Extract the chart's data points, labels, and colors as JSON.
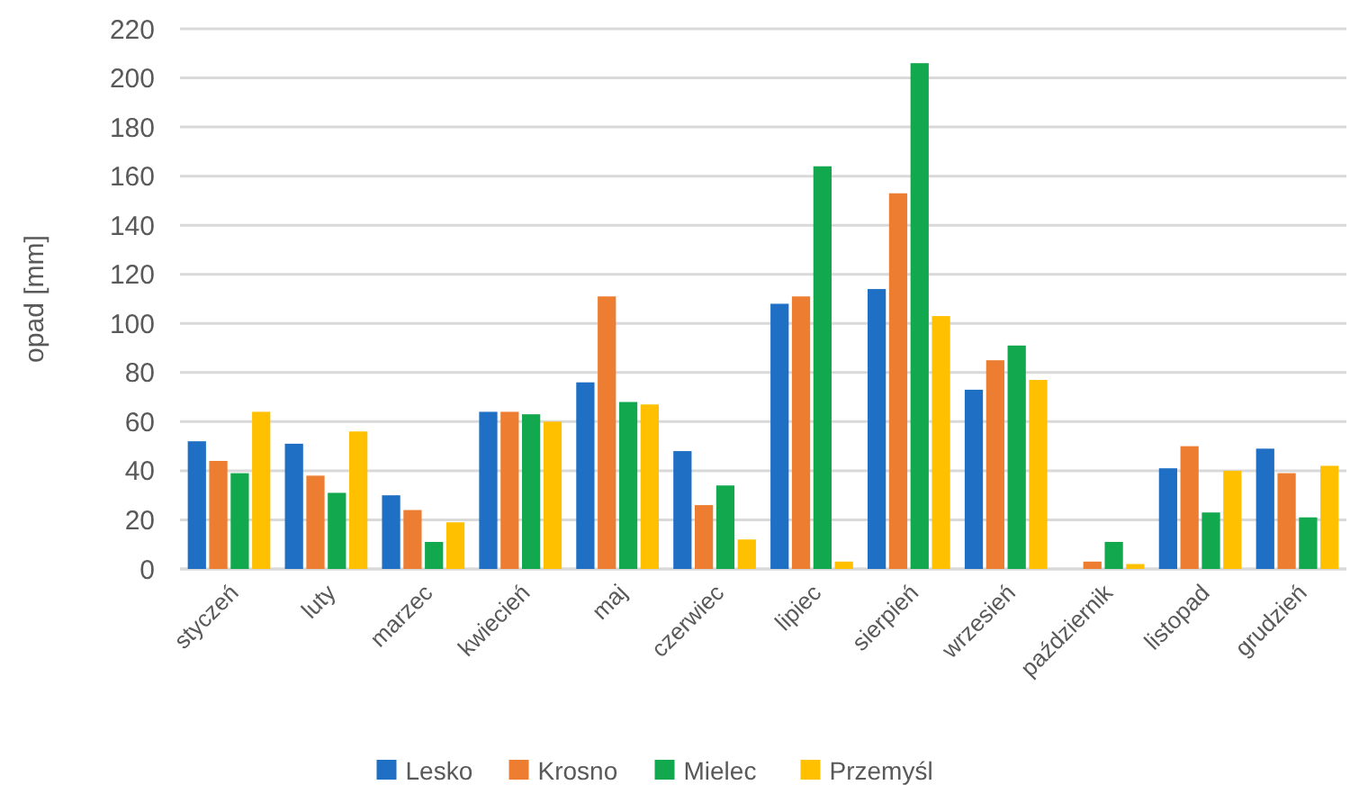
{
  "chart_data": {
    "type": "bar",
    "ylabel": "opad [mm]",
    "categories": [
      "styczeń",
      "luty",
      "marzec",
      "kwiecień",
      "maj",
      "czerwiec",
      "lipiec",
      "sierpień",
      "wrzesień",
      "październik",
      "listopad",
      "grudzień"
    ],
    "series": [
      {
        "name": "Lesko",
        "color": "#1f6fc5",
        "values": [
          52,
          51,
          30,
          64,
          76,
          48,
          108,
          114,
          73,
          0,
          41,
          49
        ]
      },
      {
        "name": "Krosno",
        "color": "#ed7d31",
        "values": [
          44,
          38,
          24,
          64,
          111,
          26,
          111,
          153,
          85,
          3,
          50,
          39
        ]
      },
      {
        "name": "Mielec",
        "color": "#12a84d",
        "values": [
          39,
          31,
          11,
          63,
          68,
          34,
          164,
          206,
          91,
          11,
          23,
          21
        ]
      },
      {
        "name": "Przemyśl",
        "color": "#ffc000",
        "values": [
          64,
          56,
          19,
          60,
          67,
          12,
          3,
          103,
          77,
          2,
          40,
          42
        ]
      }
    ],
    "ylim": [
      0,
      220
    ],
    "yticks": [
      0,
      20,
      40,
      60,
      80,
      100,
      120,
      140,
      160,
      180,
      200,
      220
    ],
    "grid": "y",
    "legend": "bottom"
  }
}
